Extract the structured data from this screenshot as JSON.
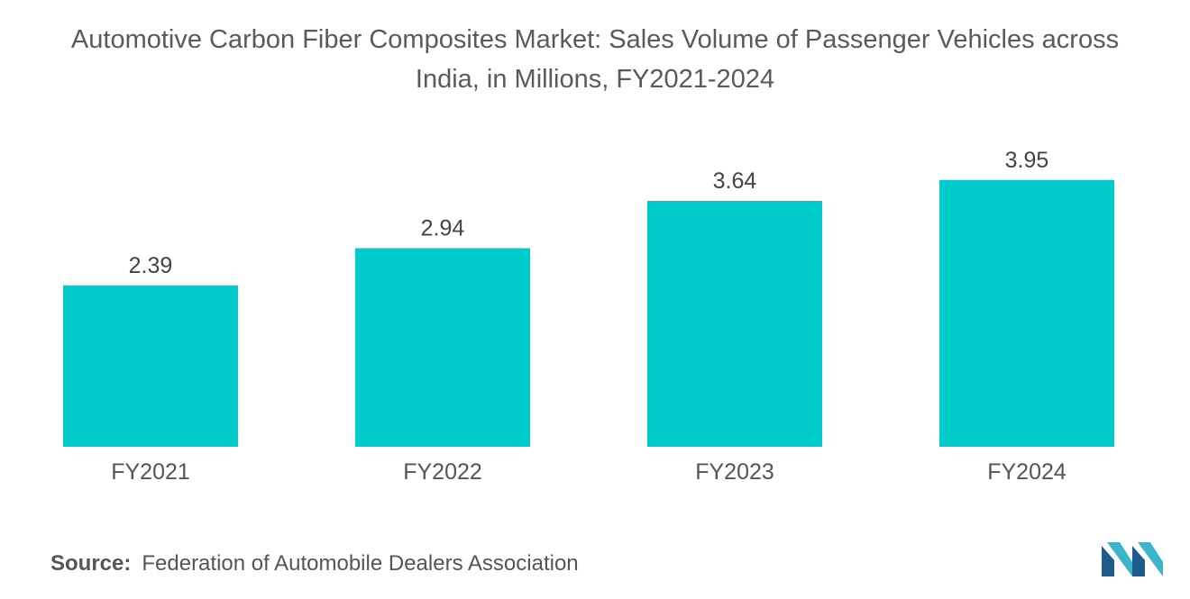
{
  "chart_data": {
    "type": "bar",
    "title_line1": "Automotive Carbon Fiber Composites Market: Sales Volume of Passenger Vehicles across",
    "title_line2": "India, in Millions, FY2021-2024",
    "categories": [
      "FY2021",
      "FY2022",
      "FY2023",
      "FY2024"
    ],
    "values": [
      2.39,
      2.94,
      3.64,
      3.95
    ],
    "value_labels": [
      "2.39",
      "2.94",
      "3.64",
      "3.95"
    ],
    "xlabel": "",
    "ylabel": "",
    "ylim": [
      0,
      4.0
    ],
    "grid": false,
    "legend": "none",
    "bar_color": "#00CCCC"
  },
  "source": {
    "label": "Source:",
    "text": "Federation of Automobile Dealers Association"
  },
  "logo": {
    "icon": "mordor-intelligence-logo-icon",
    "color_dark": "#1E5A8C",
    "color_light": "#3BB5C9"
  }
}
